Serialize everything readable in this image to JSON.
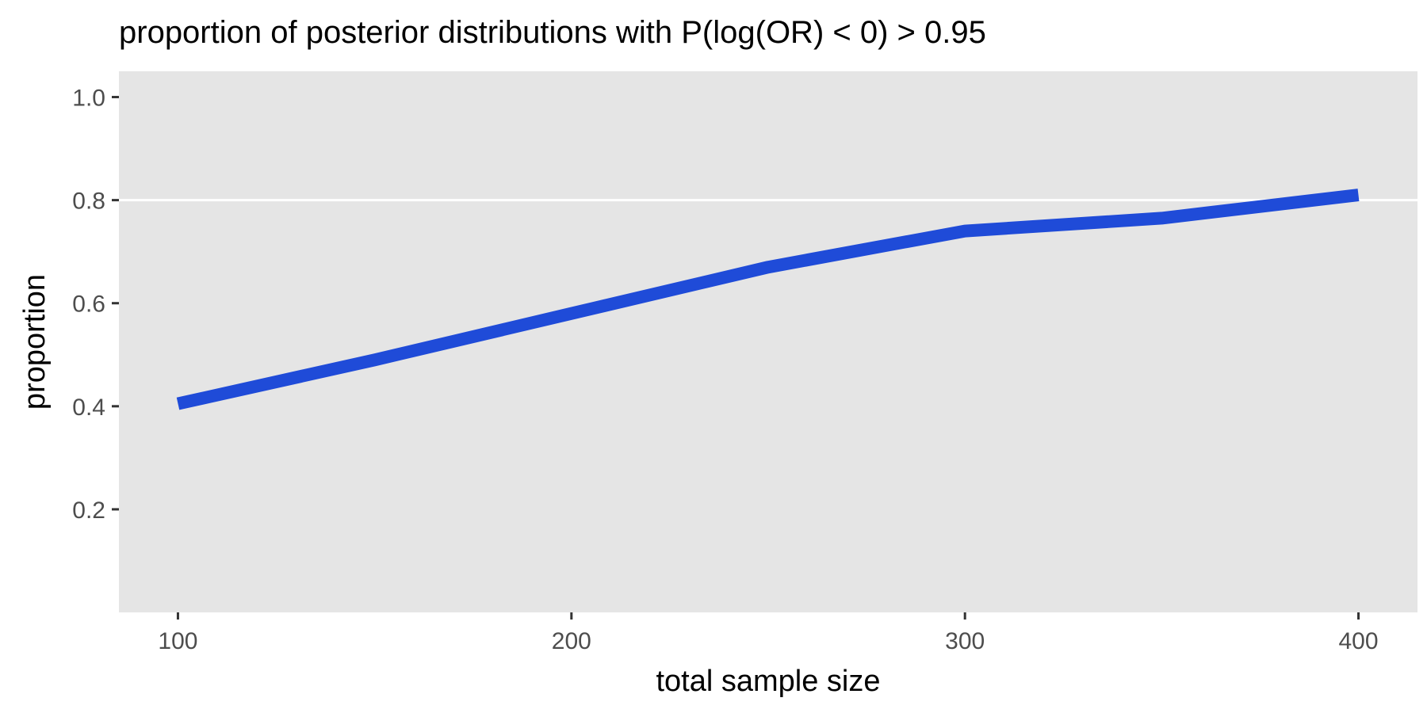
{
  "chart_data": {
    "type": "line",
    "title": "proportion of posterior distributions with P(log(OR) < 0) > 0.95",
    "xlabel": "total sample size",
    "ylabel": "proportion",
    "x": [
      100,
      150,
      200,
      250,
      300,
      350,
      400
    ],
    "series": [
      {
        "values": [
          0.405,
          0.49,
          0.58,
          0.67,
          0.74,
          0.765,
          0.81
        ]
      }
    ],
    "xlim": [
      85,
      415
    ],
    "ylim": [
      0,
      1.05
    ],
    "xticks": [
      100,
      200,
      300,
      400
    ],
    "xtick_labels": [
      "100",
      "200",
      "300",
      "400"
    ],
    "yticks": [
      0.2,
      0.4,
      0.6,
      0.8,
      1.0
    ],
    "ytick_labels": [
      "0.2",
      "0.4",
      "0.6",
      "0.8",
      "1.0"
    ],
    "hline": 0.8,
    "grid": false,
    "colors": {
      "panel_background": "#e5e5e5",
      "line": "#1f4bd8",
      "reference_line": "#ffffff",
      "tick_mark": "#333333"
    }
  }
}
